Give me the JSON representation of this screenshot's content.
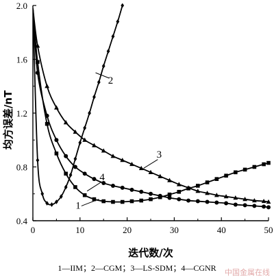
{
  "chart_data": {
    "type": "line",
    "xlabel": "迭代数/次",
    "ylabel": "均方误差/nT",
    "xlim": [
      0,
      50
    ],
    "ylim": [
      0.4,
      2.0
    ],
    "xticks": [
      "0",
      "10",
      "20",
      "30",
      "40",
      "50"
    ],
    "yticks": [
      "0.4",
      "0.8",
      "1.2",
      "1.6",
      "2.0"
    ],
    "legend_text": "1—IIM；2—CGM；3—LS-SDM；4—CGNR",
    "series": [
      {
        "name": "1",
        "marker": "square",
        "x": [
          0,
          1,
          3,
          5,
          7,
          9,
          11,
          13,
          15,
          17,
          19,
          21,
          23,
          25,
          27,
          29,
          31,
          33,
          35,
          37,
          39,
          41,
          43,
          45,
          47,
          49,
          50
        ],
        "y": [
          1.98,
          1.58,
          1.12,
          0.9,
          0.75,
          0.65,
          0.59,
          0.56,
          0.545,
          0.54,
          0.54,
          0.545,
          0.55,
          0.56,
          0.575,
          0.595,
          0.615,
          0.64,
          0.66,
          0.685,
          0.71,
          0.735,
          0.76,
          0.78,
          0.8,
          0.82,
          0.83
        ]
      },
      {
        "name": "2",
        "marker": "diamond",
        "x": [
          0,
          1,
          2,
          3,
          4,
          5,
          6,
          7,
          8,
          9,
          10,
          11,
          12,
          13,
          14,
          15,
          16,
          17,
          18,
          19
        ],
        "y": [
          1.98,
          0.85,
          0.6,
          0.53,
          0.52,
          0.54,
          0.58,
          0.65,
          0.74,
          0.86,
          0.98,
          1.09,
          1.2,
          1.32,
          1.43,
          1.55,
          1.66,
          1.77,
          1.88,
          2.0
        ]
      },
      {
        "name": "3",
        "marker": "triangle",
        "x": [
          0,
          1,
          3,
          5,
          7,
          9,
          11,
          13,
          15,
          17,
          19,
          21,
          23,
          25,
          27,
          29,
          31,
          33,
          35,
          37,
          39,
          41,
          43,
          45,
          47,
          49,
          50
        ],
        "y": [
          1.98,
          1.7,
          1.4,
          1.24,
          1.13,
          1.06,
          1.0,
          0.96,
          0.92,
          0.88,
          0.85,
          0.82,
          0.79,
          0.76,
          0.73,
          0.7,
          0.67,
          0.645,
          0.62,
          0.605,
          0.59,
          0.58,
          0.57,
          0.56,
          0.55,
          0.545,
          0.54
        ]
      },
      {
        "name": "4",
        "marker": "circle",
        "x": [
          0,
          1,
          3,
          5,
          7,
          9,
          11,
          13,
          15,
          17,
          19,
          21,
          23,
          25,
          27,
          29,
          31,
          33,
          35,
          37,
          39,
          41,
          43,
          45,
          47,
          49,
          50
        ],
        "y": [
          1.98,
          1.5,
          1.18,
          1.0,
          0.88,
          0.8,
          0.75,
          0.71,
          0.68,
          0.66,
          0.645,
          0.63,
          0.615,
          0.6,
          0.585,
          0.57,
          0.56,
          0.55,
          0.545,
          0.54,
          0.535,
          0.53,
          0.52,
          0.515,
          0.51,
          0.505,
          0.5
        ]
      }
    ]
  },
  "watermark": "中国金属在线"
}
